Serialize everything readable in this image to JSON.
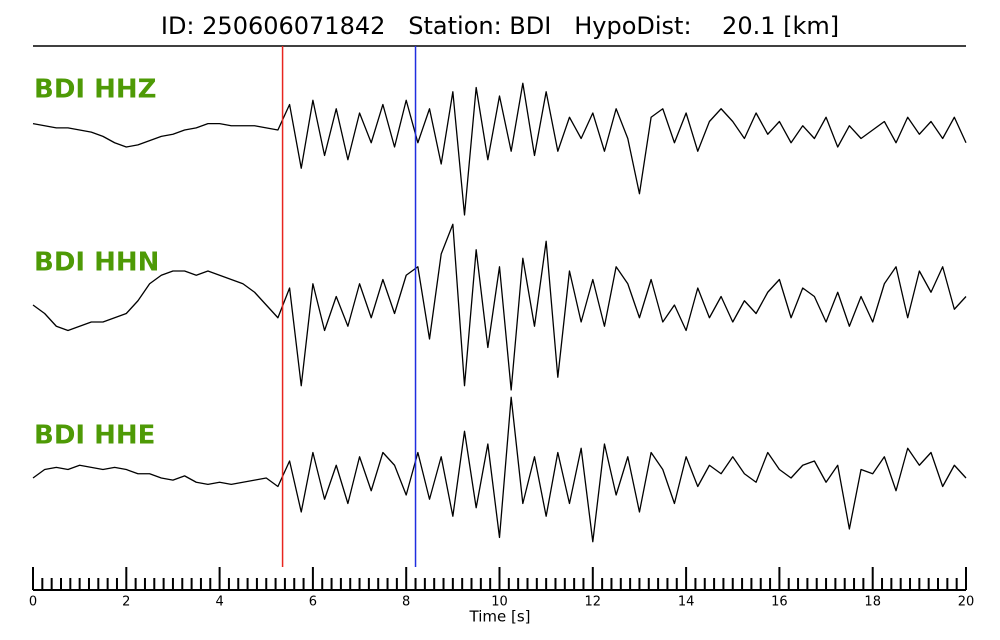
{
  "chart_data": {
    "type": "line",
    "title": "ID: 250606071842   Station: BDI   HypoDist:    20.1 [km]",
    "xlabel": "Time [s]",
    "xlim": [
      0,
      20
    ],
    "xticks": [
      0,
      2,
      4,
      6,
      8,
      10,
      12,
      14,
      16,
      18,
      20
    ],
    "xminorticks": [
      0.2,
      0.4,
      0.6,
      0.8,
      1,
      1.2,
      1.4,
      1.6,
      1.8,
      2.2,
      2.4,
      2.6,
      2.8,
      3,
      3.2,
      3.4,
      3.6,
      3.8,
      4.2,
      4.4,
      4.6,
      4.8,
      5,
      5.2,
      5.4,
      5.6,
      5.8,
      6.2,
      6.4,
      6.6,
      6.8,
      7,
      7.2,
      7.4,
      7.6,
      7.8,
      8.2,
      8.4,
      8.6,
      8.8,
      9,
      9.2,
      9.4,
      9.6,
      9.8,
      10.2,
      10.4,
      10.6,
      10.8,
      11,
      11.2,
      11.4,
      11.6,
      11.8,
      12.2,
      12.4,
      12.6,
      12.8,
      13,
      13.2,
      13.4,
      13.6,
      13.8,
      14.2,
      14.4,
      14.6,
      14.8,
      15,
      15.2,
      15.4,
      15.6,
      15.8,
      16.2,
      16.4,
      16.6,
      16.8,
      17,
      17.2,
      17.4,
      17.6,
      17.8,
      18.2,
      18.4,
      18.6,
      18.8,
      19,
      19.2,
      19.4,
      19.6,
      19.8
    ],
    "vlines": [
      {
        "x": 5.35,
        "color": "#e8251e"
      },
      {
        "x": 8.2,
        "color": "#1f2ee0"
      }
    ],
    "label_color": "#4e9a06",
    "ylim": [
      -2,
      2
    ],
    "x": [
      0,
      0.25,
      0.5,
      0.75,
      1,
      1.25,
      1.5,
      1.75,
      2,
      2.25,
      2.5,
      2.75,
      3,
      3.25,
      3.5,
      3.75,
      4,
      4.25,
      4.5,
      4.75,
      5,
      5.25,
      5.5,
      5.75,
      6,
      6.25,
      6.5,
      6.75,
      7,
      7.25,
      7.5,
      7.75,
      8,
      8.25,
      8.5,
      8.75,
      9,
      9.25,
      9.5,
      9.75,
      10,
      10.25,
      10.5,
      10.75,
      11,
      11.25,
      11.5,
      11.75,
      12,
      12.25,
      12.5,
      12.75,
      13,
      13.25,
      13.5,
      13.75,
      14,
      14.25,
      14.5,
      14.75,
      15,
      15.25,
      15.5,
      15.75,
      16,
      16.25,
      16.5,
      16.75,
      17,
      17.25,
      17.5,
      17.75,
      18,
      18.25,
      18.5,
      18.75,
      19,
      19.25,
      19.5,
      19.75,
      20
    ],
    "series": [
      {
        "name": "BDI HHZ",
        "color": "#000000",
        "values": [
          0.15,
          0.1,
          0.05,
          0.05,
          0.0,
          -0.05,
          -0.15,
          -0.3,
          -0.4,
          -0.35,
          -0.25,
          -0.15,
          -0.1,
          0.0,
          0.05,
          0.15,
          0.15,
          0.1,
          0.1,
          0.1,
          0.05,
          0.0,
          0.6,
          -0.9,
          0.7,
          -0.6,
          0.5,
          -0.7,
          0.4,
          -0.3,
          0.6,
          -0.4,
          0.7,
          -0.3,
          0.5,
          -0.8,
          0.9,
          -2.0,
          1.0,
          -0.7,
          0.8,
          -0.5,
          1.1,
          -0.6,
          0.9,
          -0.5,
          0.3,
          -0.2,
          0.4,
          -0.5,
          0.5,
          -0.2,
          -1.5,
          0.3,
          0.5,
          -0.3,
          0.4,
          -0.5,
          0.2,
          0.5,
          0.2,
          -0.2,
          0.4,
          -0.1,
          0.2,
          -0.3,
          0.1,
          -0.2,
          0.3,
          -0.4,
          0.1,
          -0.2,
          0.0,
          0.2,
          -0.3,
          0.3,
          -0.1,
          0.2,
          -0.2,
          0.3,
          -0.3
        ]
      },
      {
        "name": "BDI HHN",
        "color": "#000000",
        "values": [
          0.0,
          -0.2,
          -0.5,
          -0.6,
          -0.5,
          -0.4,
          -0.4,
          -0.3,
          -0.2,
          0.1,
          0.5,
          0.7,
          0.8,
          0.8,
          0.7,
          0.8,
          0.7,
          0.6,
          0.5,
          0.3,
          0.0,
          -0.3,
          0.4,
          -1.9,
          0.5,
          -0.6,
          0.2,
          -0.5,
          0.5,
          -0.3,
          0.6,
          -0.2,
          0.7,
          0.9,
          -0.8,
          1.2,
          1.9,
          -1.9,
          1.3,
          -1.0,
          0.9,
          -2.0,
          1.1,
          -0.5,
          1.5,
          -1.7,
          0.8,
          -0.4,
          0.6,
          -0.5,
          0.9,
          0.5,
          -0.3,
          0.6,
          -0.4,
          0.0,
          -0.6,
          0.4,
          -0.3,
          0.2,
          -0.4,
          0.1,
          -0.2,
          0.3,
          0.6,
          -0.3,
          0.4,
          0.2,
          -0.4,
          0.3,
          -0.5,
          0.2,
          -0.4,
          0.5,
          0.9,
          -0.3,
          0.8,
          0.3,
          0.9,
          -0.1,
          0.2
        ]
      },
      {
        "name": "BDI HHE",
        "color": "#000000",
        "values": [
          0.0,
          0.2,
          0.25,
          0.2,
          0.3,
          0.25,
          0.2,
          0.25,
          0.2,
          0.1,
          0.1,
          0.0,
          -0.05,
          0.05,
          -0.1,
          -0.15,
          -0.1,
          -0.15,
          -0.1,
          -0.05,
          0.0,
          -0.2,
          0.4,
          -0.8,
          0.6,
          -0.5,
          0.3,
          -0.6,
          0.5,
          -0.3,
          0.6,
          0.3,
          -0.4,
          0.6,
          -0.5,
          0.5,
          -0.9,
          1.1,
          -0.7,
          0.8,
          -1.4,
          1.9,
          -0.6,
          0.5,
          -0.9,
          0.6,
          -0.6,
          0.7,
          -1.5,
          0.8,
          -0.4,
          0.5,
          -0.8,
          0.6,
          0.2,
          -0.6,
          0.5,
          -0.2,
          0.3,
          0.1,
          0.5,
          0.1,
          -0.1,
          0.6,
          0.2,
          0.0,
          0.3,
          0.4,
          -0.1,
          0.3,
          -1.2,
          0.2,
          0.1,
          0.5,
          -0.3,
          0.7,
          0.3,
          0.6,
          -0.2,
          0.3,
          0.0
        ]
      }
    ]
  }
}
